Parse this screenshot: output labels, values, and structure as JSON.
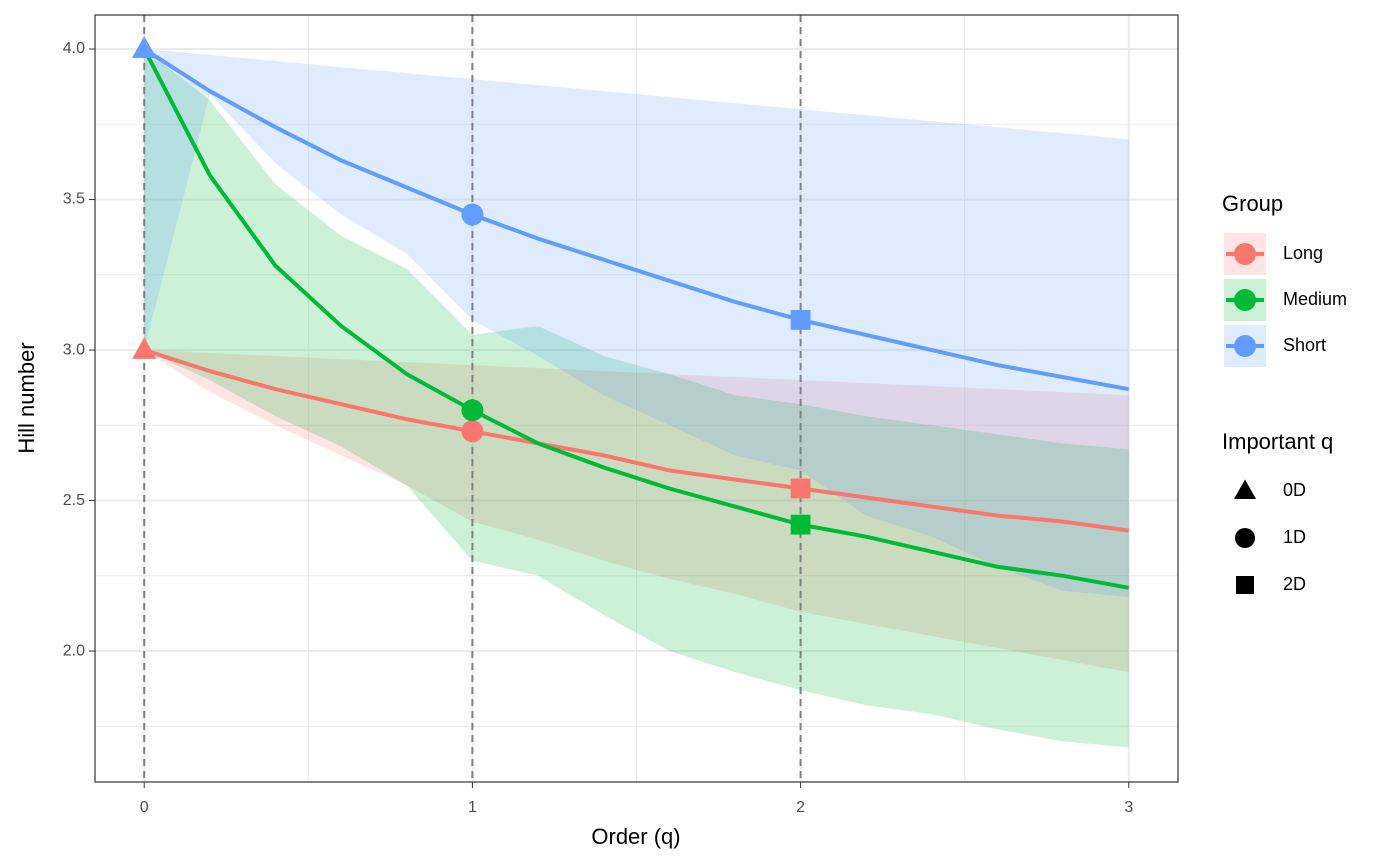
{
  "chart_data": {
    "type": "line",
    "xlabel": "Order (q)",
    "ylabel": "Hill number",
    "x": [
      0,
      0.2,
      0.4,
      0.6,
      0.8,
      1,
      1.2,
      1.4,
      1.6,
      1.8,
      2,
      2.2,
      2.4,
      2.6,
      2.8,
      3
    ],
    "xlim": [
      -0.15,
      3.15
    ],
    "ylim": [
      1.565,
      4.113
    ],
    "xticks": [
      0,
      1,
      2,
      3
    ],
    "yticks": [
      {
        "value": 2,
        "label": "2.0"
      },
      {
        "value": 2.5,
        "label": "2.5"
      },
      {
        "value": 3,
        "label": "3.0"
      },
      {
        "value": 3.5,
        "label": "3.5"
      },
      {
        "value": 4,
        "label": "4.0"
      }
    ],
    "xminor": [
      0.5,
      1.5,
      2.5
    ],
    "yminor": [
      1.75,
      2.25,
      2.75,
      3.25,
      3.75
    ],
    "grid": true,
    "legend_title": "Group",
    "series": [
      {
        "name": "Long",
        "color": "#F8766D",
        "values": [
          3.0,
          2.93,
          2.87,
          2.82,
          2.77,
          2.73,
          2.69,
          2.65,
          2.6,
          2.57,
          2.54,
          2.51,
          2.48,
          2.45,
          2.43,
          2.4
        ],
        "lower": [
          3.0,
          2.86,
          2.75,
          2.65,
          2.55,
          2.43,
          2.37,
          2.3,
          2.24,
          2.19,
          2.13,
          2.09,
          2.05,
          2.01,
          1.97,
          1.93
        ],
        "upper": [
          3.0,
          2.99,
          2.98,
          2.97,
          2.96,
          2.95,
          2.94,
          2.93,
          2.92,
          2.91,
          2.9,
          2.89,
          2.88,
          2.87,
          2.86,
          2.85
        ]
      },
      {
        "name": "Medium",
        "color": "#00BA38",
        "values": [
          4.0,
          3.58,
          3.28,
          3.08,
          2.92,
          2.8,
          2.69,
          2.61,
          2.54,
          2.48,
          2.42,
          2.38,
          2.33,
          2.28,
          2.25,
          2.21
        ],
        "lower": [
          3.0,
          2.9,
          2.78,
          2.68,
          2.55,
          2.3,
          2.25,
          2.12,
          2.0,
          1.93,
          1.87,
          1.82,
          1.79,
          1.74,
          1.7,
          1.68
        ],
        "upper": [
          4.0,
          3.83,
          3.55,
          3.38,
          3.27,
          3.05,
          3.08,
          2.98,
          2.92,
          2.85,
          2.82,
          2.78,
          2.75,
          2.72,
          2.69,
          2.67
        ]
      },
      {
        "name": "Short",
        "color": "#619CFF",
        "values": [
          4.0,
          3.86,
          3.74,
          3.63,
          3.54,
          3.45,
          3.37,
          3.3,
          3.23,
          3.16,
          3.1,
          3.05,
          3.0,
          2.95,
          2.91,
          2.87
        ],
        "lower": [
          3.0,
          3.85,
          3.62,
          3.45,
          3.32,
          3.1,
          2.98,
          2.85,
          2.75,
          2.65,
          2.6,
          2.45,
          2.38,
          2.28,
          2.2,
          2.18
        ],
        "upper": [
          4.0,
          3.98,
          3.96,
          3.94,
          3.92,
          3.9,
          3.88,
          3.86,
          3.84,
          3.82,
          3.8,
          3.78,
          3.76,
          3.74,
          3.72,
          3.7
        ]
      }
    ],
    "shape_legend_title": "Important q",
    "important_q": [
      {
        "label": "0D",
        "x": 0,
        "shape": "triangle"
      },
      {
        "label": "1D",
        "x": 1,
        "shape": "circle"
      },
      {
        "label": "2D",
        "x": 2,
        "shape": "square"
      }
    ]
  }
}
